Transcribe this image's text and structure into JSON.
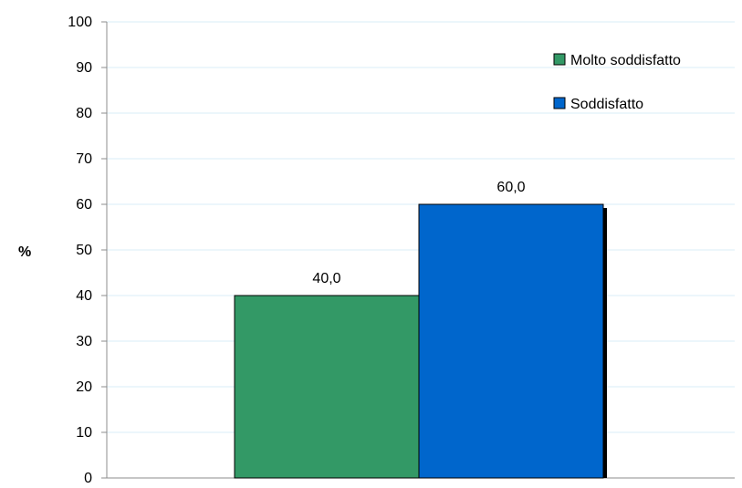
{
  "chart_data": {
    "type": "bar",
    "ylabel": "%",
    "ylim": [
      0,
      100
    ],
    "ytick_step": 10,
    "grid": true,
    "legend_position": "top-right",
    "series": [
      {
        "name": "Molto soddisfatto",
        "value": 40,
        "label": "40,0",
        "color": "#339966"
      },
      {
        "name": "Soddisfatto",
        "value": 60,
        "label": "60,0",
        "color": "#0066CC"
      }
    ]
  }
}
